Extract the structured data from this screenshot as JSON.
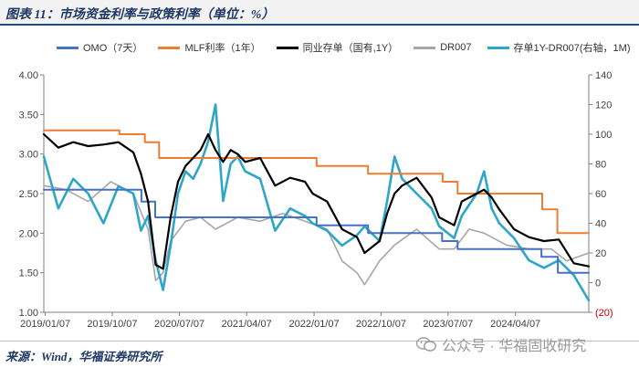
{
  "header": {
    "title": "图表 11：市场资金利率与政策利率（单位：%）"
  },
  "footer": {
    "source": "来源：Wind，华福证券研究所",
    "watermark": "公众号 · 华福固收研究"
  },
  "chart_data": {
    "type": "line",
    "title": "图表 11：市场资金利率与政策利率（单位：%）",
    "xlabel": "",
    "ylabel": "",
    "x_ticks": [
      "2019/01/07",
      "2019/10/07",
      "2020/07/07",
      "2021/04/07",
      "2022/01/07",
      "2022/10/07",
      "2023/07/07",
      "2024/04/07"
    ],
    "y_left": {
      "min": 1.0,
      "max": 4.0,
      "ticks": [
        "1.00",
        "1.50",
        "2.00",
        "2.50",
        "3.00",
        "3.50",
        "4.00"
      ]
    },
    "y_right": {
      "min": -20,
      "max": 140,
      "ticks": [
        "(20)",
        "0",
        "20",
        "40",
        "60",
        "80",
        "100",
        "120",
        "140"
      ]
    },
    "grid": false,
    "legend_position": "top",
    "series": [
      {
        "name": "OMO（7天）",
        "axis": "left",
        "color": "#4472c4",
        "points": [
          [
            "2019-01-01",
            2.55
          ],
          [
            "2020-02-03",
            2.55
          ],
          [
            "2020-02-03",
            2.4
          ],
          [
            "2020-03-30",
            2.4
          ],
          [
            "2020-03-30",
            2.2
          ],
          [
            "2022-01-17",
            2.2
          ],
          [
            "2022-01-17",
            2.1
          ],
          [
            "2022-08-15",
            2.1
          ],
          [
            "2022-08-15",
            2.0
          ],
          [
            "2023-06-13",
            2.0
          ],
          [
            "2023-06-13",
            1.9
          ],
          [
            "2023-08-15",
            1.9
          ],
          [
            "2023-08-15",
            1.8
          ],
          [
            "2024-07-22",
            1.8
          ],
          [
            "2024-07-22",
            1.7
          ],
          [
            "2024-09-27",
            1.7
          ],
          [
            "2024-09-27",
            1.5
          ],
          [
            "2025-01-31",
            1.5
          ]
        ]
      },
      {
        "name": "MLF利率（1年）",
        "axis": "left",
        "color": "#ed7d31",
        "points": [
          [
            "2019-01-01",
            3.3
          ],
          [
            "2019-11-05",
            3.3
          ],
          [
            "2019-11-05",
            3.25
          ],
          [
            "2020-02-17",
            3.25
          ],
          [
            "2020-02-17",
            3.15
          ],
          [
            "2020-04-15",
            3.15
          ],
          [
            "2020-04-15",
            2.95
          ],
          [
            "2022-01-17",
            2.95
          ],
          [
            "2022-01-17",
            2.85
          ],
          [
            "2022-08-15",
            2.85
          ],
          [
            "2022-08-15",
            2.75
          ],
          [
            "2023-06-15",
            2.75
          ],
          [
            "2023-06-15",
            2.65
          ],
          [
            "2023-08-15",
            2.65
          ],
          [
            "2023-08-15",
            2.5
          ],
          [
            "2024-07-25",
            2.5
          ],
          [
            "2024-07-25",
            2.3
          ],
          [
            "2024-09-25",
            2.3
          ],
          [
            "2024-09-25",
            2.0
          ],
          [
            "2025-01-31",
            2.0
          ]
        ]
      },
      {
        "name": "同业存单（国有,1Y）",
        "axis": "left",
        "color": "#000000",
        "points": [
          [
            "2019-01-01",
            3.25
          ],
          [
            "2019-03-01",
            3.08
          ],
          [
            "2019-05-01",
            3.15
          ],
          [
            "2019-07-01",
            3.1
          ],
          [
            "2019-09-01",
            3.12
          ],
          [
            "2019-11-01",
            3.15
          ],
          [
            "2020-01-01",
            3.02
          ],
          [
            "2020-02-01",
            2.75
          ],
          [
            "2020-03-01",
            2.4
          ],
          [
            "2020-04-01",
            1.6
          ],
          [
            "2020-05-01",
            1.55
          ],
          [
            "2020-06-01",
            2.2
          ],
          [
            "2020-07-01",
            2.65
          ],
          [
            "2020-08-01",
            2.85
          ],
          [
            "2020-09-01",
            2.95
          ],
          [
            "2020-10-01",
            3.05
          ],
          [
            "2020-11-01",
            3.25
          ],
          [
            "2020-12-01",
            3.05
          ],
          [
            "2021-01-01",
            2.9
          ],
          [
            "2021-02-01",
            3.05
          ],
          [
            "2021-03-01",
            3.0
          ],
          [
            "2021-04-01",
            2.9
          ],
          [
            "2021-06-01",
            2.95
          ],
          [
            "2021-08-01",
            2.6
          ],
          [
            "2021-10-01",
            2.7
          ],
          [
            "2021-12-01",
            2.65
          ],
          [
            "2022-01-01",
            2.5
          ],
          [
            "2022-03-01",
            2.4
          ],
          [
            "2022-05-01",
            2.05
          ],
          [
            "2022-07-01",
            1.95
          ],
          [
            "2022-08-01",
            1.75
          ],
          [
            "2022-10-01",
            1.9
          ],
          [
            "2022-11-01",
            2.25
          ],
          [
            "2022-12-01",
            2.5
          ],
          [
            "2023-01-01",
            2.6
          ],
          [
            "2023-03-01",
            2.7
          ],
          [
            "2023-05-01",
            2.45
          ],
          [
            "2023-06-01",
            2.2
          ],
          [
            "2023-08-01",
            2.1
          ],
          [
            "2023-09-01",
            2.4
          ],
          [
            "2023-11-01",
            2.5
          ],
          [
            "2023-12-01",
            2.55
          ],
          [
            "2024-01-01",
            2.45
          ],
          [
            "2024-02-01",
            2.3
          ],
          [
            "2024-04-01",
            2.05
          ],
          [
            "2024-06-01",
            1.95
          ],
          [
            "2024-08-01",
            1.9
          ],
          [
            "2024-10-01",
            1.92
          ],
          [
            "2024-12-01",
            1.62
          ],
          [
            "2025-01-31",
            1.58
          ]
        ]
      },
      {
        "name": "DR007",
        "axis": "left",
        "color": "#a6a6a6",
        "points": [
          [
            "2019-01-01",
            2.6
          ],
          [
            "2019-04-01",
            2.55
          ],
          [
            "2019-07-01",
            2.4
          ],
          [
            "2019-10-01",
            2.65
          ],
          [
            "2020-01-01",
            2.5
          ],
          [
            "2020-03-01",
            2.05
          ],
          [
            "2020-04-01",
            1.4
          ],
          [
            "2020-05-01",
            1.5
          ],
          [
            "2020-06-01",
            1.9
          ],
          [
            "2020-08-01",
            2.15
          ],
          [
            "2020-10-01",
            2.2
          ],
          [
            "2020-12-01",
            2.05
          ],
          [
            "2021-03-01",
            2.2
          ],
          [
            "2021-06-01",
            2.15
          ],
          [
            "2021-09-01",
            2.25
          ],
          [
            "2021-12-01",
            2.15
          ],
          [
            "2022-03-01",
            2.05
          ],
          [
            "2022-05-01",
            1.65
          ],
          [
            "2022-07-01",
            1.5
          ],
          [
            "2022-08-01",
            1.35
          ],
          [
            "2022-10-01",
            1.65
          ],
          [
            "2022-12-01",
            1.85
          ],
          [
            "2023-03-01",
            2.05
          ],
          [
            "2023-06-01",
            1.8
          ],
          [
            "2023-08-01",
            1.8
          ],
          [
            "2023-10-01",
            2.05
          ],
          [
            "2023-12-01",
            2.0
          ],
          [
            "2024-03-01",
            1.85
          ],
          [
            "2024-06-01",
            1.8
          ],
          [
            "2024-09-01",
            1.8
          ],
          [
            "2024-11-01",
            1.65
          ],
          [
            "2025-01-31",
            1.75
          ]
        ]
      },
      {
        "name": "存单1Y-DR007(右轴，1M)",
        "axis": "right",
        "color": "#2ea6c8",
        "points": [
          [
            "2019-01-01",
            85
          ],
          [
            "2019-03-01",
            50
          ],
          [
            "2019-05-01",
            70
          ],
          [
            "2019-07-01",
            60
          ],
          [
            "2019-09-01",
            40
          ],
          [
            "2019-11-01",
            65
          ],
          [
            "2020-01-01",
            60
          ],
          [
            "2020-02-01",
            35
          ],
          [
            "2020-03-01",
            45
          ],
          [
            "2020-04-01",
            15
          ],
          [
            "2020-05-01",
            -5
          ],
          [
            "2020-06-01",
            25
          ],
          [
            "2020-07-01",
            60
          ],
          [
            "2020-08-01",
            75
          ],
          [
            "2020-09-01",
            70
          ],
          [
            "2020-10-01",
            80
          ],
          [
            "2020-11-01",
            95
          ],
          [
            "2020-12-01",
            120
          ],
          [
            "2021-01-01",
            55
          ],
          [
            "2021-02-01",
            80
          ],
          [
            "2021-03-01",
            85
          ],
          [
            "2021-04-01",
            75
          ],
          [
            "2021-06-01",
            70
          ],
          [
            "2021-08-01",
            35
          ],
          [
            "2021-10-01",
            50
          ],
          [
            "2021-12-01",
            45
          ],
          [
            "2022-01-01",
            40
          ],
          [
            "2022-03-01",
            35
          ],
          [
            "2022-05-01",
            25
          ],
          [
            "2022-07-01",
            32
          ],
          [
            "2022-08-01",
            38
          ],
          [
            "2022-10-01",
            28
          ],
          [
            "2022-11-01",
            55
          ],
          [
            "2022-12-01",
            85
          ],
          [
            "2023-01-01",
            70
          ],
          [
            "2023-03-01",
            60
          ],
          [
            "2023-05-01",
            50
          ],
          [
            "2023-06-01",
            38
          ],
          [
            "2023-08-01",
            30
          ],
          [
            "2023-09-01",
            45
          ],
          [
            "2023-11-01",
            60
          ],
          [
            "2023-12-01",
            75
          ],
          [
            "2024-01-01",
            50
          ],
          [
            "2024-02-01",
            40
          ],
          [
            "2024-04-01",
            30
          ],
          [
            "2024-06-01",
            15
          ],
          [
            "2024-08-01",
            10
          ],
          [
            "2024-10-01",
            15
          ],
          [
            "2024-12-01",
            5
          ],
          [
            "2025-01-31",
            -12
          ]
        ]
      }
    ]
  }
}
